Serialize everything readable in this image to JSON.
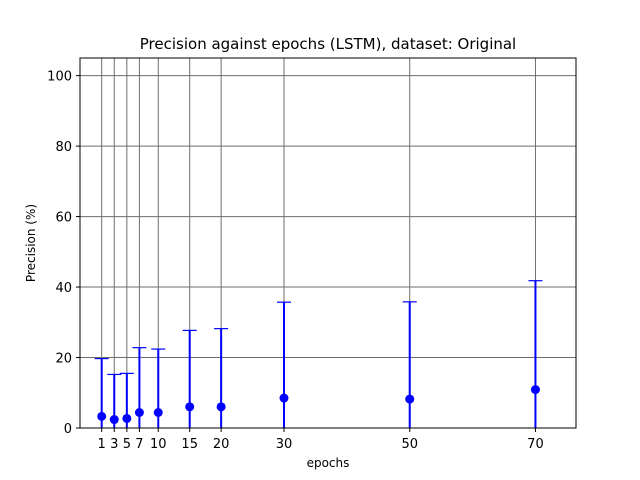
{
  "chart_data": {
    "type": "scatter",
    "title": "Precision against epochs (LSTM), dataset: Original",
    "xlabel": "epochs",
    "ylabel": "Precision (%)",
    "xlim": [
      -2.45,
      76.45
    ],
    "ylim": [
      0,
      105
    ],
    "grid": true,
    "x_ticks": [
      1,
      3,
      5,
      7,
      10,
      15,
      20,
      30,
      50,
      70
    ],
    "y_ticks": [
      0,
      20,
      40,
      60,
      80,
      100
    ],
    "series": [
      {
        "marker": "circle",
        "color": "#0000ff",
        "points": [
          {
            "x": 1,
            "y": 3.3,
            "err_low": 3.3,
            "err_high": 16.4
          },
          {
            "x": 3,
            "y": 2.4,
            "err_low": 2.4,
            "err_high": 12.8
          },
          {
            "x": 5,
            "y": 2.7,
            "err_low": 2.7,
            "err_high": 12.8
          },
          {
            "x": 7,
            "y": 4.4,
            "err_low": 4.4,
            "err_high": 18.4
          },
          {
            "x": 10,
            "y": 4.4,
            "err_low": 4.4,
            "err_high": 18.0
          },
          {
            "x": 15,
            "y": 6.0,
            "err_low": 6.0,
            "err_high": 21.7
          },
          {
            "x": 20,
            "y": 6.0,
            "err_low": 6.0,
            "err_high": 22.2
          },
          {
            "x": 30,
            "y": 8.5,
            "err_low": 8.5,
            "err_high": 27.2
          },
          {
            "x": 50,
            "y": 8.2,
            "err_low": 8.2,
            "err_high": 27.6
          },
          {
            "x": 70,
            "y": 10.9,
            "err_low": 10.9,
            "err_high": 30.9
          }
        ]
      }
    ]
  }
}
